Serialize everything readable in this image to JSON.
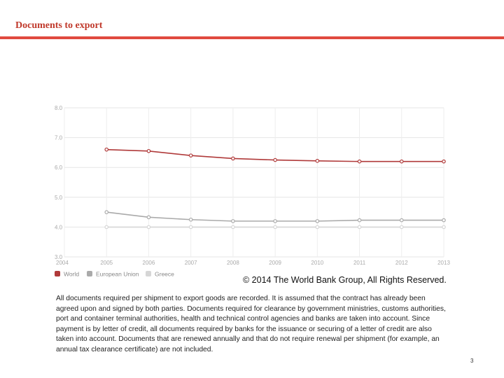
{
  "slide": {
    "title": "Documents to export",
    "copyright": "© 2014 The World Bank Group, All Rights Reserved.",
    "description": "All documents required per shipment to export goods are recorded. It is assumed that the contract has already been agreed upon and signed by both parties. Documents required for clearance by government ministries, customs authorities, port and container terminal authorities, health and technical control agencies and banks are taken into account. Since payment is by letter of credit, all documents required by banks for the issuance or securing of a letter of credit are also taken into account. Documents that are renewed annually and that do not require renewal per shipment (for example, an annual tax clearance certificate) are not included.",
    "page_number": "3"
  },
  "chart_data": {
    "type": "line",
    "title": "",
    "xlabel": "",
    "ylabel": "",
    "x": [
      "2004",
      "2005",
      "2006",
      "2007",
      "2008",
      "2009",
      "2010",
      "2011",
      "2012",
      "2013"
    ],
    "xlim": [
      2004,
      2013
    ],
    "ylim": [
      3.0,
      8.0
    ],
    "yticks": [
      "3.0",
      "4.0",
      "5.0",
      "6.0",
      "7.0",
      "8.0"
    ],
    "grid": true,
    "legend_position": "bottom-left",
    "series": [
      {
        "name": "World",
        "color": "#b03a3a",
        "values": [
          null,
          6.6,
          6.55,
          6.4,
          6.3,
          6.25,
          6.22,
          6.2,
          6.2,
          6.2
        ]
      },
      {
        "name": "European Union",
        "color": "#aaaaaa",
        "values": [
          null,
          4.5,
          4.33,
          4.25,
          4.2,
          4.2,
          4.2,
          4.23,
          4.23,
          4.23
        ]
      },
      {
        "name": "Greece",
        "color": "#d6d6d6",
        "values": [
          null,
          4.0,
          4.0,
          4.0,
          4.0,
          4.0,
          4.0,
          4.0,
          4.0,
          4.0
        ]
      }
    ]
  }
}
